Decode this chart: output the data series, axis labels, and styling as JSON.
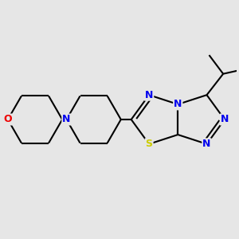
{
  "background_color": "#e6e6e6",
  "atom_colors": {
    "N": "#0000ee",
    "O": "#ee0000",
    "S": "#cccc00"
  },
  "bond_color": "#000000",
  "bond_width": 1.5,
  "figsize": [
    3.0,
    3.0
  ],
  "dpi": 100,
  "xlim": [
    -2.5,
    2.5
  ],
  "ylim": [
    -2.5,
    2.5
  ]
}
